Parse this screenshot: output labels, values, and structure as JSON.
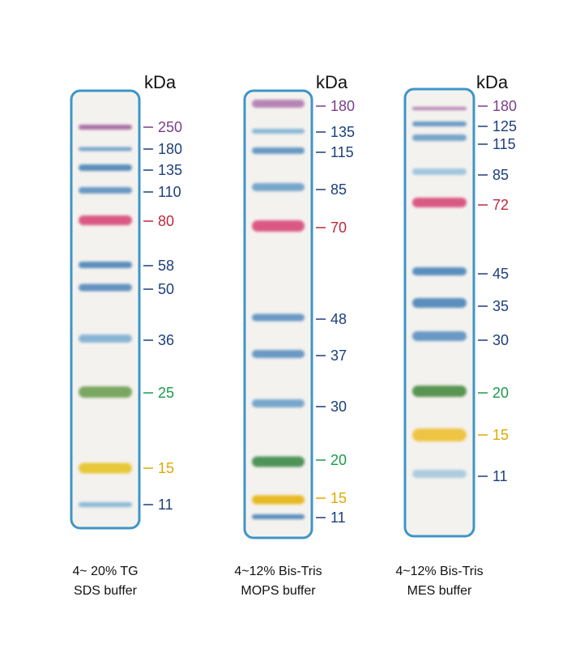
{
  "lanes": [
    {
      "unit": "kDa",
      "caption": [
        "4~ 20% TG",
        "SDS buffer"
      ],
      "bands": [
        {
          "label": "250",
          "color": "#a0609e",
          "label_color": "#7a3e8a"
        },
        {
          "label": "180",
          "color": "#6a9cc6",
          "label_color": "#1c3f7a"
        },
        {
          "label": "135",
          "color": "#4a84b8",
          "label_color": "#1c3f7a"
        },
        {
          "label": "110",
          "color": "#5a90c0",
          "label_color": "#1c3f7a"
        },
        {
          "label": "80",
          "color": "#d84a78",
          "label_color": "#c0283c"
        },
        {
          "label": "58",
          "color": "#4a84b8",
          "label_color": "#1c3f7a"
        },
        {
          "label": "50",
          "color": "#5288bc",
          "label_color": "#1c3f7a"
        },
        {
          "label": "36",
          "color": "#7eaed2",
          "label_color": "#1c3f7a"
        },
        {
          "label": "25",
          "color": "#6e9e52",
          "label_color": "#1a9a4a"
        },
        {
          "label": "15",
          "color": "#e6c428",
          "label_color": "#e0a800"
        },
        {
          "label": "11",
          "color": "#80b4d4",
          "label_color": "#1c3f7a"
        }
      ]
    },
    {
      "unit": "kDa",
      "caption": [
        "4~12% Bis-Tris",
        "MOPS buffer"
      ],
      "bands": [
        {
          "label": "180",
          "color": "#b07ab0",
          "label_color": "#7a3e8a"
        },
        {
          "label": "135",
          "color": "#80b2d4",
          "label_color": "#1c3f7a"
        },
        {
          "label": "115",
          "color": "#5a90c0",
          "label_color": "#1c3f7a"
        },
        {
          "label": "85",
          "color": "#6a9ec8",
          "label_color": "#1c3f7a"
        },
        {
          "label": "70",
          "color": "#d84a78",
          "label_color": "#c0283c"
        },
        {
          "label": "48",
          "color": "#5a90c0",
          "label_color": "#1c3f7a"
        },
        {
          "label": "37",
          "color": "#5a90c0",
          "label_color": "#1c3f7a"
        },
        {
          "label": "30",
          "color": "#6a9ec8",
          "label_color": "#1c3f7a"
        },
        {
          "label": "20",
          "color": "#3e8a4a",
          "label_color": "#1a9a4a"
        },
        {
          "label": "15",
          "color": "#e6b410",
          "label_color": "#e0a800"
        },
        {
          "label": "11",
          "color": "#4a84b8",
          "label_color": "#1c3f7a"
        }
      ]
    },
    {
      "unit": "kDa",
      "caption": [
        "4~12% Bis-Tris",
        "MES buffer"
      ],
      "bands": [
        {
          "label": "180",
          "color": "#b07ab0",
          "label_color": "#7a3e8a"
        },
        {
          "label": "125",
          "color": "#5a90c0",
          "label_color": "#1c3f7a"
        },
        {
          "label": "115",
          "color": "#6a9cc6",
          "label_color": "#1c3f7a"
        },
        {
          "label": "85",
          "color": "#98c2dc",
          "label_color": "#1c3f7a"
        },
        {
          "label": "72",
          "color": "#d84a78",
          "label_color": "#c0283c"
        },
        {
          "label": "45",
          "color": "#4a84b8",
          "label_color": "#1c3f7a"
        },
        {
          "label": "35",
          "color": "#4a84b8",
          "label_color": "#1c3f7a"
        },
        {
          "label": "30",
          "color": "#5a90c0",
          "label_color": "#1c3f7a"
        },
        {
          "label": "20",
          "color": "#4a8a40",
          "label_color": "#1a9a4a"
        },
        {
          "label": "15",
          "color": "#eec030",
          "label_color": "#e0a800"
        },
        {
          "label": "11",
          "color": "#a6c8de",
          "label_color": "#1c3f7a"
        }
      ]
    }
  ]
}
